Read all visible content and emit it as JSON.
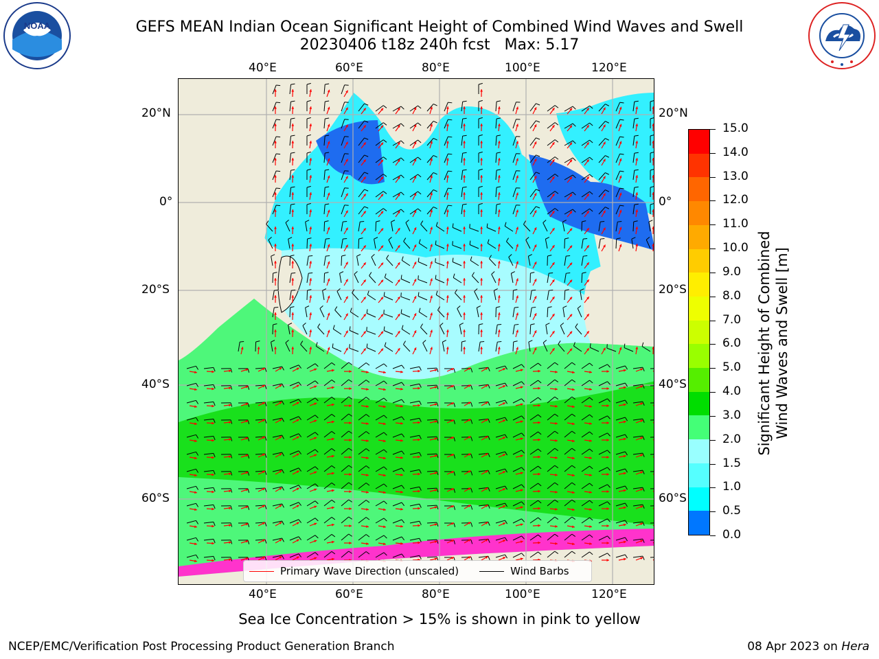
{
  "header": {
    "title_line1": "GEFS MEAN Indian Ocean Significant Height of Combined Wind Waves and Swell",
    "title_line2": "20230406 t18z 240h fcst   Max: 5.17"
  },
  "logos": {
    "left_logo_text": "NOAA",
    "left_logo_ring": "NATIONAL OCEANIC AND ATMOSPHERIC ADMINISTRATION · U.S. DEPARTMENT OF COMMERCE",
    "right_logo_ring": "NATIONAL WEATHER SERVICE"
  },
  "map": {
    "lon_ticks": [
      "40°E",
      "60°E",
      "80°E",
      "100°E",
      "120°E"
    ],
    "lat_ticks": [
      "20°N",
      "0°",
      "20°S",
      "40°S",
      "60°S"
    ],
    "colors": {
      "land": "#efecdb",
      "ocean_calm": "#1e6cf0",
      "ocean_low": "#33f0ff",
      "ocean_mid": "#a8fcff",
      "ocean_high": "#4ef77a",
      "ocean_max": "#19e01c",
      "sea_ice": "#ff33cc"
    }
  },
  "colorbar": {
    "label_line1": "Significant Height of Combined",
    "label_line2": "Wind Waves and Swell [m]",
    "ticks": [
      "15.0",
      "14.0",
      "13.0",
      "12.0",
      "11.0",
      "10.0",
      "9.0",
      "8.0",
      "7.0",
      "6.0",
      "5.0",
      "4.0",
      "3.0",
      "2.0",
      "1.5",
      "1.0",
      "0.5",
      "0.0"
    ],
    "colors": [
      "#ff0000",
      "#ff3300",
      "#ff6600",
      "#ff8800",
      "#ffaa00",
      "#ffcc00",
      "#ffee00",
      "#eeff00",
      "#ccff00",
      "#99ff00",
      "#55ee00",
      "#00dd00",
      "#44ff77",
      "#99ffff",
      "#55ffff",
      "#00ffff",
      "#0077ff",
      "#0000ff"
    ]
  },
  "legend": {
    "wave_label": "Primary Wave Direction (unscaled)",
    "wave_color": "#ff0000",
    "wind_label": "Wind Barbs",
    "wind_color": "#000000"
  },
  "note": "Sea Ice Concentration > 15% is shown in pink to yellow",
  "footer": {
    "left": "NCEP/EMC/Verification Post Processing Product Generation Branch",
    "right_date": "08 Apr 2023 on ",
    "right_host": "Hera"
  }
}
